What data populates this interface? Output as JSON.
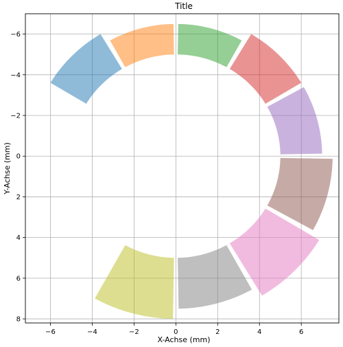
{
  "chart_data": {
    "type": "radial-bar",
    "title": "Title",
    "xlabel": "X-Achse (mm)",
    "ylabel": "Y-Achse (mm)",
    "xlim": [
      -7.2,
      7.8
    ],
    "ylim": [
      8.2,
      -7.0
    ],
    "y_inverted": true,
    "grid": true,
    "x_ticks": [
      -6,
      -4,
      -2,
      0,
      2,
      4,
      6
    ],
    "x_tick_labels": [
      "−6",
      "−4",
      "−2",
      "0",
      "2",
      "4",
      "6"
    ],
    "y_ticks": [
      -6,
      -4,
      -2,
      0,
      2,
      4,
      6,
      8
    ],
    "y_tick_labels": [
      "−6",
      "−4",
      "−2",
      "0",
      "2",
      "4",
      "6",
      "8"
    ],
    "inner_radius": 5,
    "gap_degrees": 2,
    "segments": [
      {
        "start_deg": 120,
        "end_deg": 150,
        "length": 2.0,
        "color": "#1f77b4"
      },
      {
        "start_deg": 90,
        "end_deg": 120,
        "length": 1.5,
        "color": "#ff7f0e"
      },
      {
        "start_deg": 60,
        "end_deg": 90,
        "length": 1.5,
        "color": "#2ca02c"
      },
      {
        "start_deg": 30,
        "end_deg": 60,
        "length": 2.0,
        "color": "#d62728"
      },
      {
        "start_deg": 0,
        "end_deg": 30,
        "length": 2.0,
        "color": "#9467bd"
      },
      {
        "start_deg": -30,
        "end_deg": 0,
        "length": 2.5,
        "color": "#8c564b"
      },
      {
        "start_deg": -60,
        "end_deg": -30,
        "length": 3.0,
        "color": "#e377c2"
      },
      {
        "start_deg": -90,
        "end_deg": -60,
        "length": 2.5,
        "color": "#7f7f7f"
      },
      {
        "start_deg": -120,
        "end_deg": -90,
        "length": 3.0,
        "color": "#bcbd22"
      }
    ],
    "segment_opacity": 0.5
  }
}
